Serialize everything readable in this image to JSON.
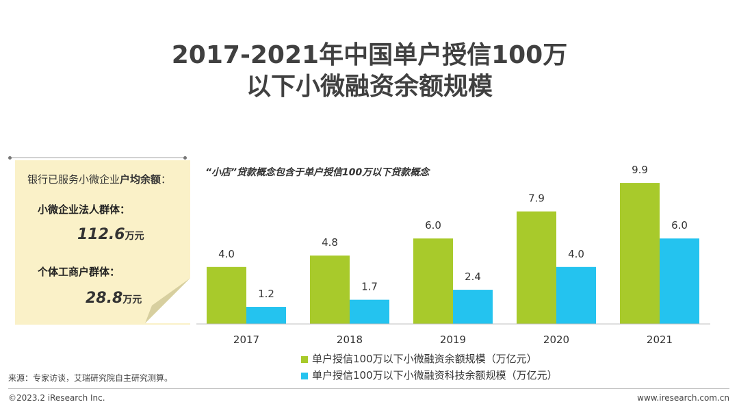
{
  "title": {
    "line1": "2017-2021年中国单户授信100万",
    "line2": "以下小微融资余额规模"
  },
  "note_card": {
    "heading_prefix": "银行已服务小微企业",
    "heading_bold": "户均余额",
    "heading_suffix": "：",
    "group1_label": "小微企业法人群体：",
    "group1_value": "112.6",
    "group1_unit": "万元",
    "group2_label": "个体工商户群体：",
    "group2_value": "28.8",
    "group2_unit": "万元"
  },
  "chart_note": "“小店”贷款概念包含于单户授信100万以下贷款概念",
  "colors": {
    "green": "#a8ca2b",
    "blue": "#24c3ef"
  },
  "chart_data": {
    "type": "bar",
    "title": "2017-2021年中国单户授信100万以下小微融资余额规模",
    "categories": [
      "2017",
      "2018",
      "2019",
      "2020",
      "2021"
    ],
    "series": [
      {
        "name": "单户授信100万以下小微融资余额规模（万亿元）",
        "values": [
          4.0,
          4.8,
          6.0,
          7.9,
          9.9
        ],
        "labels": [
          "4.0",
          "4.8",
          "6.0",
          "7.9",
          "9.9"
        ]
      },
      {
        "name": "单户授信100万以下小微融资科技余额规模（万亿元）",
        "values": [
          1.2,
          1.7,
          2.4,
          4.0,
          6.0
        ],
        "labels": [
          "1.2",
          "1.7",
          "2.4",
          "4.0",
          "6.0"
        ]
      }
    ],
    "xlabel": "",
    "ylabel": "",
    "ylim": [
      0,
      10
    ],
    "grid": false,
    "legend_position": "bottom"
  },
  "source": "来源：专家访谈，艾瑞研究院自主研究测算。",
  "footer": {
    "copyright": "©2023.2 iResearch Inc.",
    "website": "www.iresearch.com.cn"
  }
}
